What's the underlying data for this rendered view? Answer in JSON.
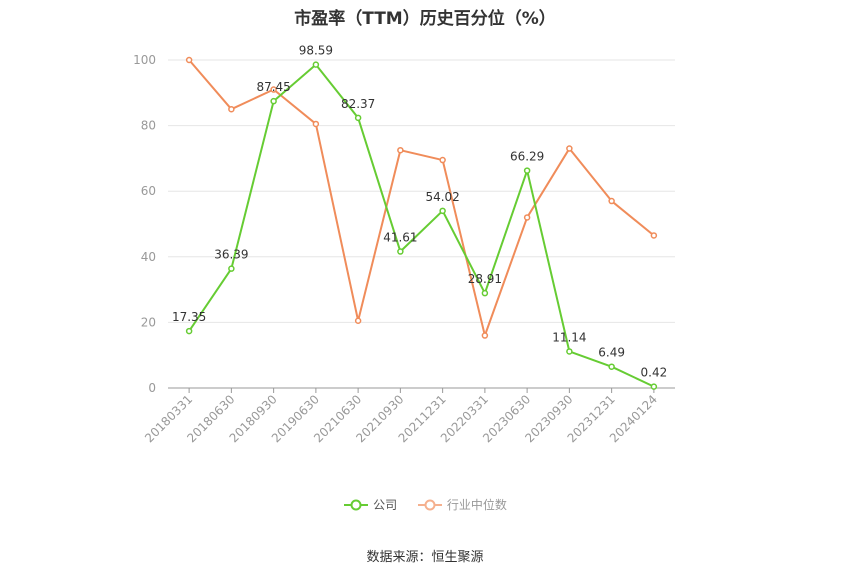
{
  "chart_data": {
    "type": "line",
    "title": "市盈率（TTM）历史百分位（%）",
    "categories": [
      "20180331",
      "20180630",
      "20180930",
      "20190630",
      "20210630",
      "20210930",
      "20211231",
      "20220331",
      "20230630",
      "20230930",
      "20231231",
      "20240124"
    ],
    "ylim": [
      0,
      100
    ],
    "yticks": [
      0,
      20,
      40,
      60,
      80,
      100
    ],
    "grid": true,
    "legend_position": "bottom",
    "series": [
      {
        "name": "公司",
        "color": "#66cc33",
        "values": [
          17.35,
          36.39,
          87.45,
          98.59,
          82.37,
          41.61,
          54.02,
          28.91,
          66.29,
          11.14,
          6.49,
          0.42
        ],
        "labels": [
          "17.35",
          "36.39",
          "87.45",
          "98.59",
          "82.37",
          "41.61",
          "54.02",
          "28.91",
          "66.29",
          "11.14",
          "6.49",
          "0.42"
        ]
      },
      {
        "name": "行业中位数",
        "color": "#f08c5a",
        "values": [
          100,
          85,
          91,
          80.5,
          20.5,
          72.5,
          69.5,
          16,
          52,
          73,
          57,
          46.5
        ]
      }
    ]
  },
  "source_text": "数据来源：恒生聚源"
}
